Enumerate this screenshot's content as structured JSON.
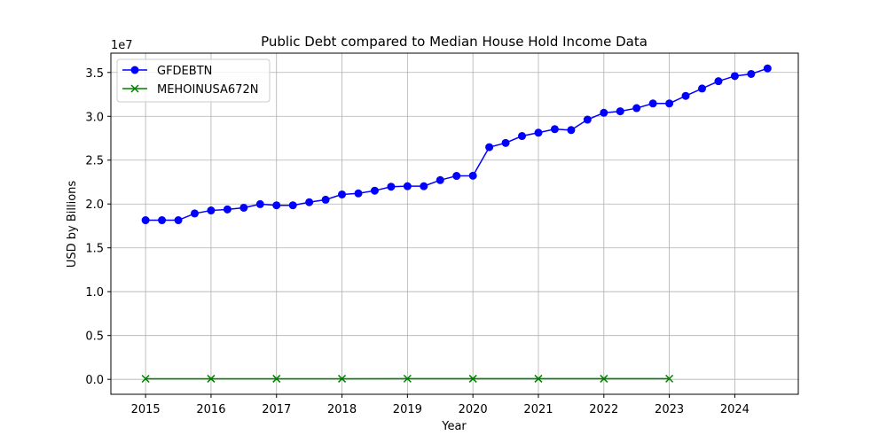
{
  "chart_data": {
    "type": "line",
    "title": "Public Debt compared to Median House Hold Income Data",
    "xlabel": "Year",
    "ylabel": "USD by Billions",
    "y_offset_label": "1e7",
    "xlim": [
      2014.47,
      2024.97
    ],
    "ylim": [
      -1700000,
      37200000
    ],
    "x_ticks": [
      2015,
      2016,
      2017,
      2018,
      2019,
      2020,
      2021,
      2022,
      2023,
      2024
    ],
    "x_tick_labels": [
      "2015",
      "2016",
      "2017",
      "2018",
      "2019",
      "2020",
      "2021",
      "2022",
      "2023",
      "2024"
    ],
    "y_ticks": [
      0,
      5000000,
      10000000,
      15000000,
      20000000,
      25000000,
      30000000,
      35000000
    ],
    "y_tick_labels": [
      "0.0",
      "0.5",
      "1.0",
      "1.5",
      "2.0",
      "2.5",
      "3.0",
      "3.5"
    ],
    "grid": true,
    "legend_position": "top-left",
    "series": [
      {
        "name": "GFDEBTN",
        "color": "#0000ff",
        "marker": "circle",
        "points": [
          [
            "2015-01",
            18150000
          ],
          [
            "2015-04",
            18150000
          ],
          [
            "2015-07",
            18150000
          ],
          [
            "2015-10",
            18920000
          ],
          [
            "2016-01",
            19260000
          ],
          [
            "2016-04",
            19380000
          ],
          [
            "2016-07",
            19570000
          ],
          [
            "2016-10",
            19980000
          ],
          [
            "2017-01",
            19850000
          ],
          [
            "2017-04",
            19850000
          ],
          [
            "2017-07",
            20200000
          ],
          [
            "2017-10",
            20490000
          ],
          [
            "2018-01",
            21090000
          ],
          [
            "2018-04",
            21210000
          ],
          [
            "2018-07",
            21520000
          ],
          [
            "2018-10",
            21970000
          ],
          [
            "2019-01",
            22030000
          ],
          [
            "2019-04",
            22030000
          ],
          [
            "2019-07",
            22720000
          ],
          [
            "2019-10",
            23200000
          ],
          [
            "2020-01",
            23220000
          ],
          [
            "2020-04",
            26480000
          ],
          [
            "2020-07",
            26960000
          ],
          [
            "2020-10",
            27750000
          ],
          [
            "2021-01",
            28130000
          ],
          [
            "2021-04",
            28530000
          ],
          [
            "2021-07",
            28430000
          ],
          [
            "2021-10",
            29620000
          ],
          [
            "2022-01",
            30400000
          ],
          [
            "2022-04",
            30570000
          ],
          [
            "2022-07",
            30930000
          ],
          [
            "2022-10",
            31460000
          ],
          [
            "2023-01",
            31460000
          ],
          [
            "2023-04",
            32330000
          ],
          [
            "2023-07",
            33170000
          ],
          [
            "2023-10",
            34000000
          ],
          [
            "2024-01",
            34590000
          ],
          [
            "2024-04",
            34830000
          ],
          [
            "2024-07",
            35460000
          ]
        ]
      },
      {
        "name": "MEHOINUSA672N",
        "color": "#008000",
        "marker": "x",
        "points": [
          [
            "2015-01",
            70000
          ],
          [
            "2016-01",
            72000
          ],
          [
            "2017-01",
            73000
          ],
          [
            "2018-01",
            74000
          ],
          [
            "2019-01",
            78000
          ],
          [
            "2020-01",
            77000
          ],
          [
            "2021-01",
            77000
          ],
          [
            "2022-01",
            75000
          ],
          [
            "2023-01",
            80000
          ]
        ]
      }
    ]
  }
}
